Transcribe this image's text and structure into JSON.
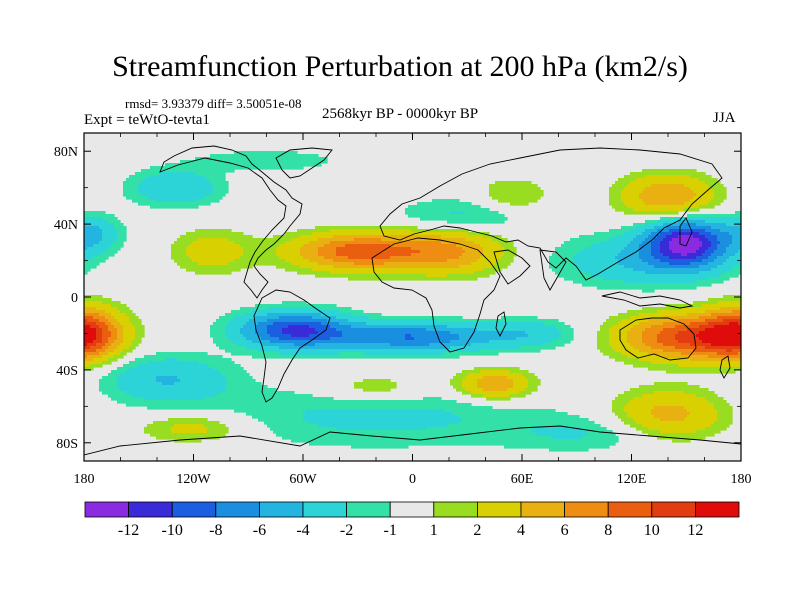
{
  "chart_data": {
    "type": "heatmap",
    "title": "Streamfunction Perturbation at 200 hPa (km2/s)",
    "stats_line": "rmsd= 3.93379 diff= 3.50051e-08",
    "left_label": "Expt = teWtO-tevta1",
    "center_label": "2568kyr BP - 0000kyr BP",
    "right_label": "JJA",
    "x_ticks": [
      "180",
      "120W",
      "60W",
      "0",
      "60E",
      "120E",
      "180"
    ],
    "x_tick_values": [
      -180,
      -120,
      -60,
      0,
      60,
      120,
      180
    ],
    "y_ticks": [
      "80N",
      "40N",
      "0",
      "40S",
      "80S"
    ],
    "y_tick_values": [
      80,
      40,
      0,
      -40,
      -80
    ],
    "xlim": [
      -180,
      180
    ],
    "ylim": [
      -90,
      90
    ],
    "colorbar_labels": [
      "-12",
      "-10",
      "-8",
      "-6",
      "-4",
      "-2",
      "-1",
      "1",
      "2",
      "4",
      "6",
      "8",
      "10",
      "12"
    ],
    "levels": [
      -12,
      -10,
      -8,
      -6,
      -4,
      -2,
      -1,
      1,
      2,
      4,
      6,
      8,
      10,
      12
    ],
    "colors": [
      "#8a2be2",
      "#3a2bd8",
      "#1c5ee0",
      "#1a8fe0",
      "#24b4e0",
      "#2cd4d8",
      "#33e0a8",
      "#e8e8e8",
      "#99dd22",
      "#d8d000",
      "#e8b010",
      "#ef8c12",
      "#ea5e10",
      "#e23c10",
      "#e00c0c"
    ],
    "field_centers": [
      {
        "lon": 150,
        "lat": 30,
        "amp": -12,
        "rlon": 22,
        "rlat": 13
      },
      {
        "lon": 125,
        "lat": 20,
        "amp": -4,
        "rlon": 45,
        "rlat": 14
      },
      {
        "lon": 30,
        "lat": 45,
        "amp": -2.5,
        "rlon": 40,
        "rlat": 10
      },
      {
        "lon": -130,
        "lat": 60,
        "amp": -4,
        "rlon": 25,
        "rlat": 10
      },
      {
        "lon": -175,
        "lat": 35,
        "amp": -4,
        "rlon": 15,
        "rlat": 10
      },
      {
        "lon": -80,
        "lat": 75,
        "amp": -2,
        "rlon": 40,
        "rlat": 6
      },
      {
        "lon": -65,
        "lat": -18,
        "amp": -10,
        "rlon": 30,
        "rlat": 10
      },
      {
        "lon": 0,
        "lat": -22,
        "amp": -8,
        "rlon": 45,
        "rlat": 8
      },
      {
        "lon": 65,
        "lat": -20,
        "amp": -3,
        "rlon": 25,
        "rlat": 8
      },
      {
        "lon": -135,
        "lat": -45,
        "amp": -4,
        "rlon": 35,
        "rlat": 13
      },
      {
        "lon": -20,
        "lat": -65,
        "amp": -2.5,
        "rlon": 90,
        "rlat": 18
      },
      {
        "lon": 100,
        "lat": -75,
        "amp": -2,
        "rlon": 50,
        "rlat": 10
      },
      {
        "lon": -30,
        "lat": 25,
        "amp": 9,
        "rlon": 35,
        "rlat": 10
      },
      {
        "lon": 20,
        "lat": 25,
        "amp": 6,
        "rlon": 30,
        "rlat": 12
      },
      {
        "lon": 140,
        "lat": 55,
        "amp": 6,
        "rlon": 25,
        "rlat": 12
      },
      {
        "lon": -110,
        "lat": 25,
        "amp": 3,
        "rlon": 22,
        "rlat": 12
      },
      {
        "lon": 55,
        "lat": 55,
        "amp": 2.5,
        "rlon": 20,
        "rlat": 10
      },
      {
        "lon": -180,
        "lat": -20,
        "amp": 10,
        "rlon": 20,
        "rlat": 14
      },
      {
        "lon": 150,
        "lat": -22,
        "amp": 10,
        "rlon": 35,
        "rlat": 12
      },
      {
        "lon": 45,
        "lat": -48,
        "amp": 6,
        "rlon": 20,
        "rlat": 8
      },
      {
        "lon": 140,
        "lat": -65,
        "amp": 5,
        "rlon": 30,
        "rlat": 14
      },
      {
        "lon": -120,
        "lat": -72,
        "amp": 3,
        "rlon": 30,
        "rlat": 8
      },
      {
        "lon": -20,
        "lat": -50,
        "amp": 2.5,
        "rlon": 30,
        "rlat": 8
      }
    ]
  }
}
